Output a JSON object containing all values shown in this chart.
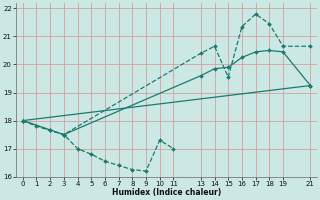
{
  "xlabel": "Humidex (Indice chaleur)",
  "bg_color": "#cce8e4",
  "line_color": "#1a7a6e",
  "grid_color": "#d4a0a0",
  "xlim": [
    -0.5,
    21.5
  ],
  "ylim": [
    16,
    22.2
  ],
  "xtick_labels": [
    "0",
    "1",
    "2",
    "3",
    "4",
    "5",
    "6",
    "7",
    "8",
    "9",
    "10",
    "11",
    "13",
    "14",
    "15",
    "16",
    "17",
    "18",
    "19",
    "21"
  ],
  "xtick_pos": [
    0,
    1,
    2,
    3,
    4,
    5,
    6,
    7,
    8,
    9,
    10,
    11,
    13,
    14,
    15,
    16,
    17,
    18,
    19,
    21
  ],
  "yticks": [
    16,
    17,
    18,
    19,
    20,
    21,
    22
  ],
  "lines": [
    {
      "x": [
        0,
        1,
        2,
        3,
        4,
        5,
        6,
        7,
        8,
        9,
        10,
        11
      ],
      "y": [
        18.0,
        17.8,
        17.65,
        17.5,
        17.0,
        16.8,
        16.55,
        16.4,
        16.25,
        16.2,
        17.3,
        17.0
      ],
      "dashed": true
    },
    {
      "x": [
        0,
        2,
        3,
        13,
        14,
        15,
        16,
        17,
        18,
        19,
        21
      ],
      "y": [
        18.0,
        17.65,
        17.5,
        20.4,
        20.65,
        19.55,
        21.35,
        21.8,
        21.45,
        20.65,
        20.65
      ],
      "dashed": true
    },
    {
      "x": [
        0,
        21
      ],
      "y": [
        18.0,
        19.25
      ],
      "dashed": false
    },
    {
      "x": [
        0,
        3,
        13,
        14,
        15,
        16,
        17,
        18,
        19,
        21
      ],
      "y": [
        18.0,
        17.5,
        19.6,
        19.85,
        19.9,
        20.25,
        20.45,
        20.5,
        20.45,
        19.25
      ],
      "dashed": false
    }
  ]
}
